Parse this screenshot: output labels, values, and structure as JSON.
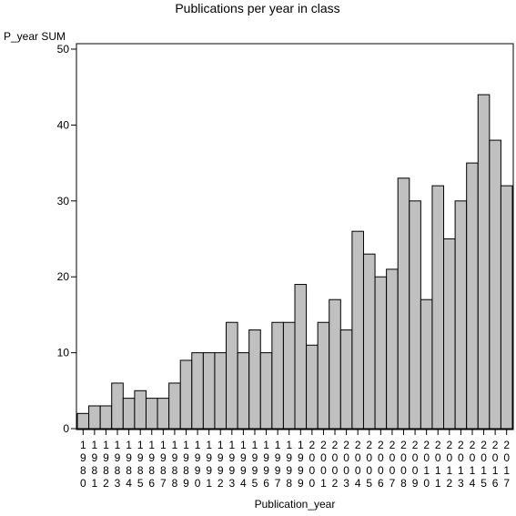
{
  "chart_data": {
    "type": "bar",
    "title": "Publications per year in class",
    "ylabel": "P_year SUM",
    "xlabel": "Publication_year",
    "ylim": [
      0,
      50
    ],
    "yticks": [
      0,
      10,
      20,
      30,
      40,
      50
    ],
    "grid": false,
    "bar_color": "#c0c0c0",
    "categories": [
      "1980",
      "1981",
      "1982",
      "1983",
      "1984",
      "1985",
      "1986",
      "1987",
      "1988",
      "1989",
      "1990",
      "1991",
      "1992",
      "1993",
      "1994",
      "1995",
      "1996",
      "1997",
      "1998",
      "1999",
      "2000",
      "2001",
      "2002",
      "2003",
      "2004",
      "2005",
      "2006",
      "2007",
      "2008",
      "2009",
      "2010",
      "2011",
      "2012",
      "2013",
      "2014",
      "2015",
      "2016",
      "2017"
    ],
    "values": [
      2,
      3,
      3,
      6,
      4,
      5,
      4,
      4,
      6,
      9,
      10,
      10,
      10,
      14,
      10,
      13,
      10,
      14,
      14,
      19,
      11,
      14,
      17,
      13,
      26,
      23,
      20,
      21,
      33,
      30,
      17,
      32,
      25,
      30,
      35,
      44,
      38,
      32
    ]
  }
}
